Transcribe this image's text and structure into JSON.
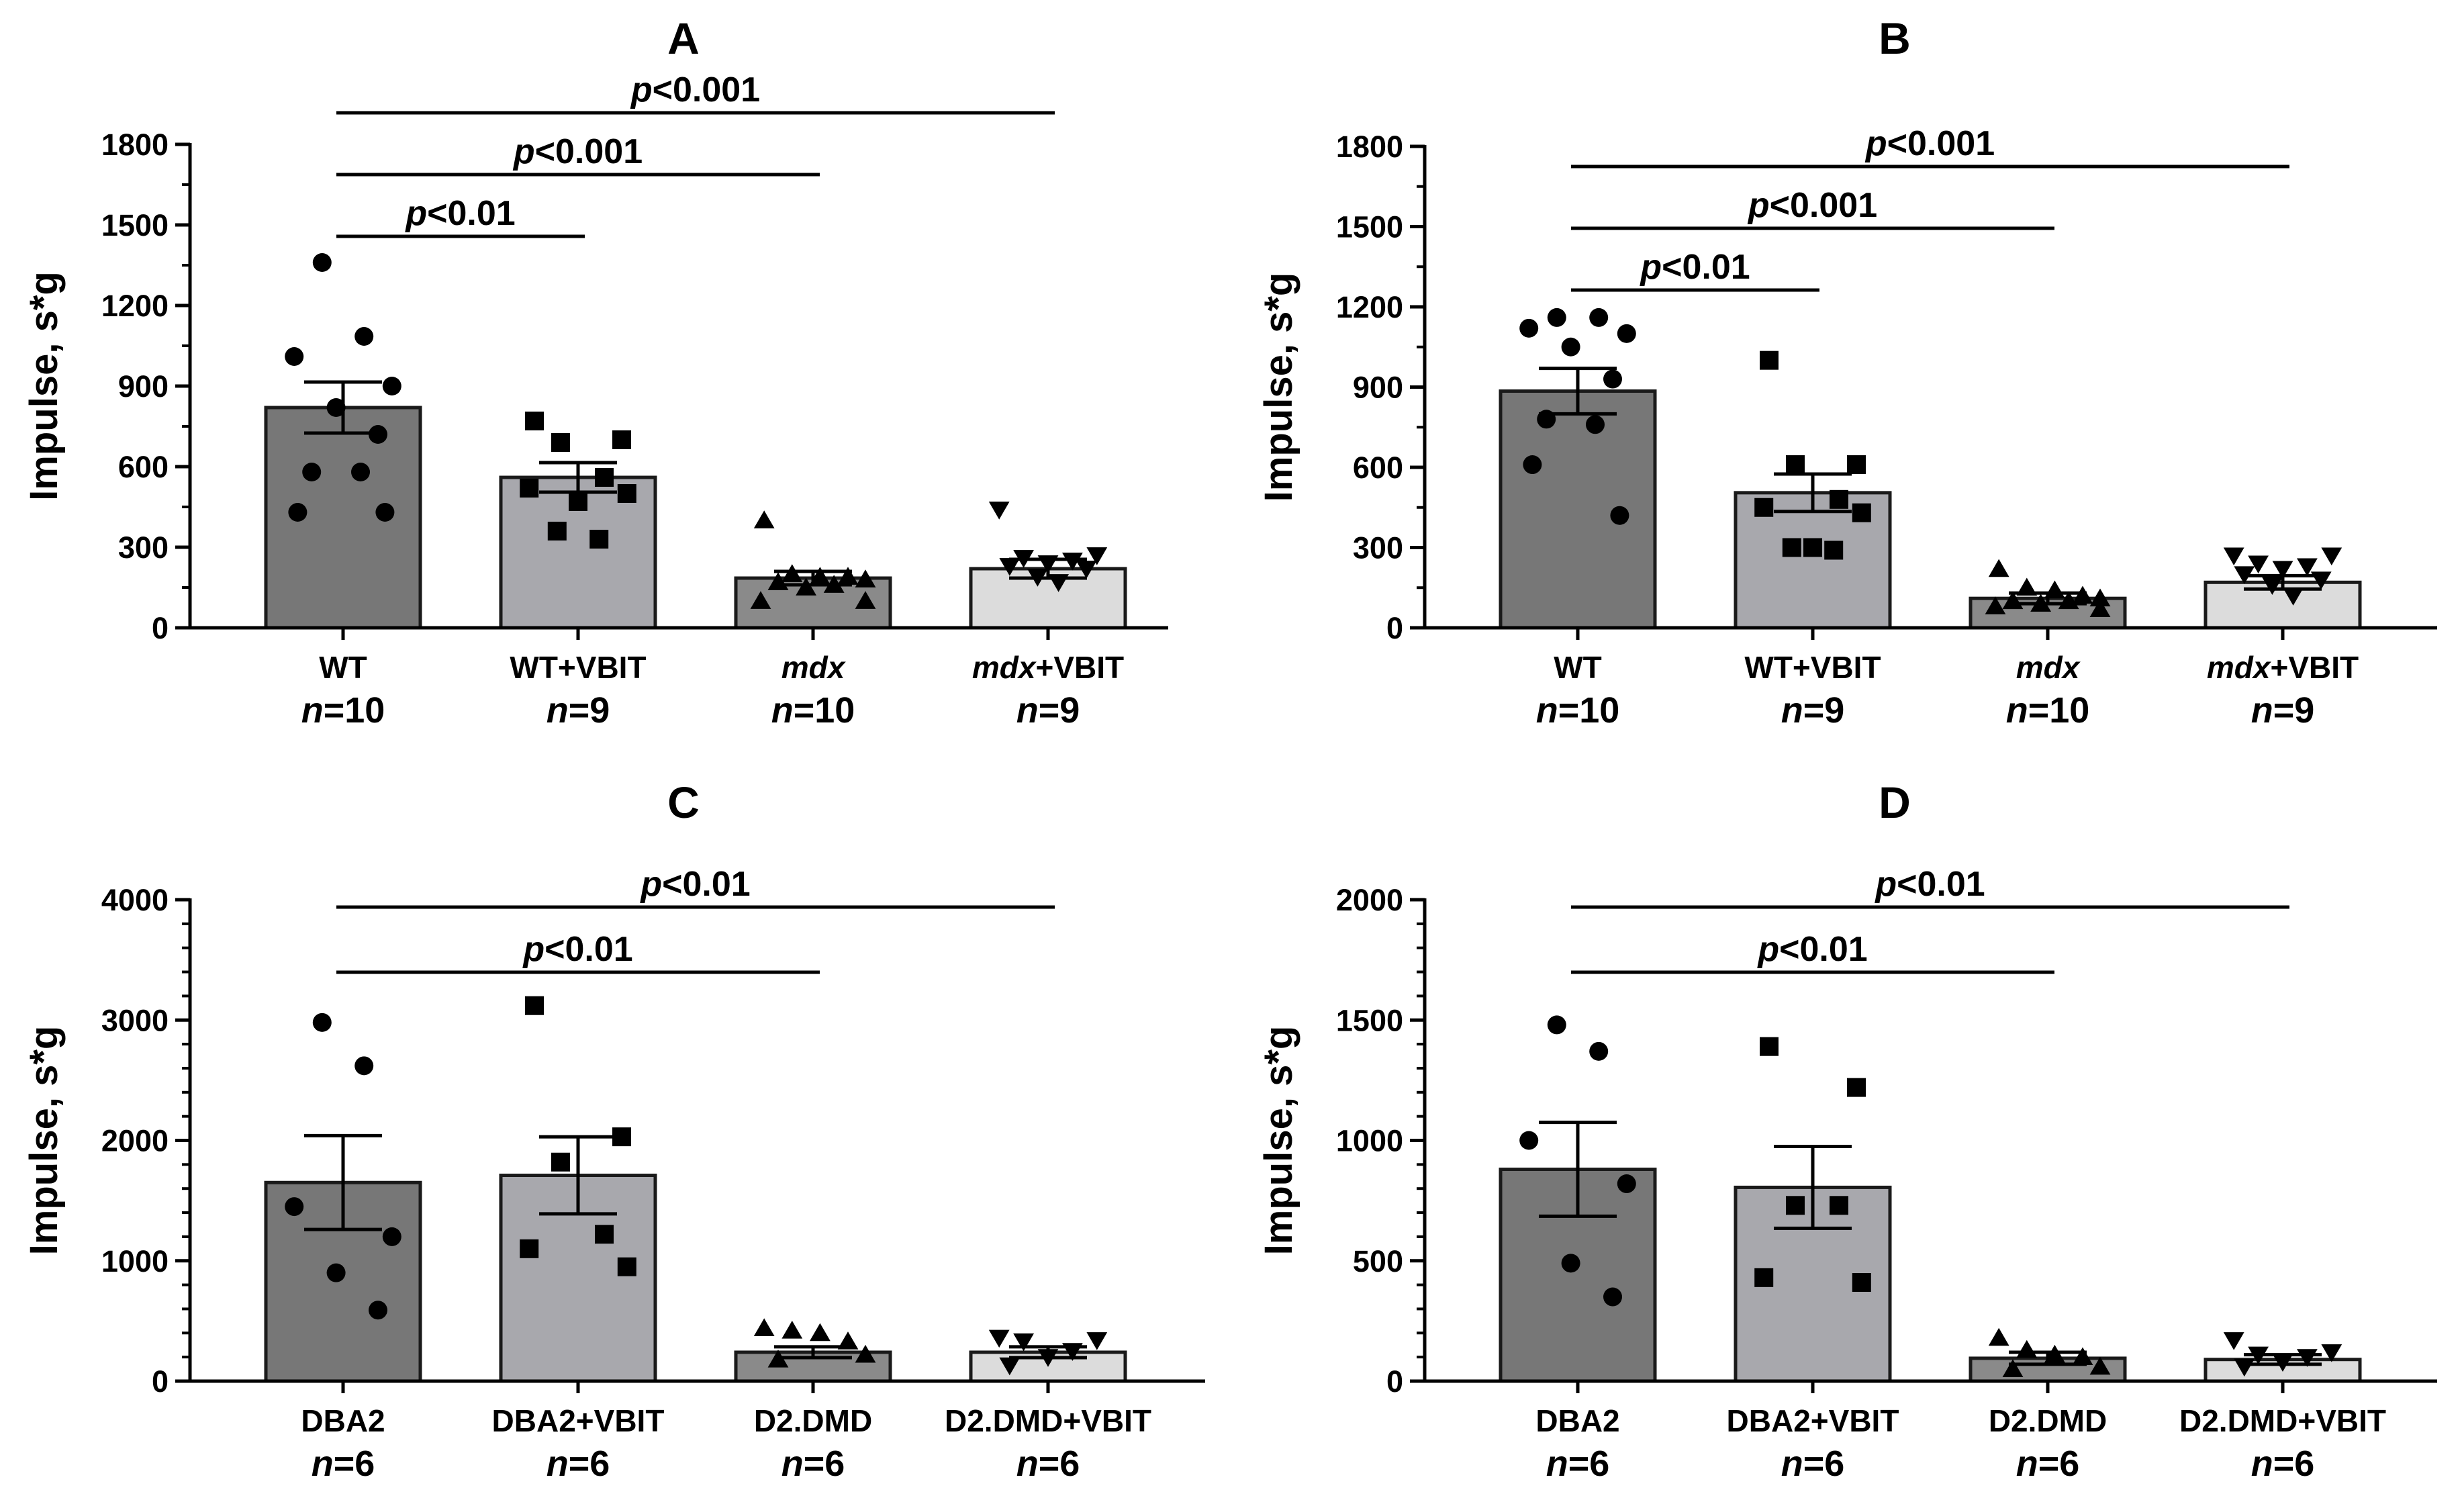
{
  "chart_data": [
    {
      "type": "bar",
      "title": "A",
      "ylabel": "Impulse, s*g",
      "xlabel": "",
      "ylim": [
        0,
        1800
      ],
      "yticks": [
        0,
        300,
        600,
        900,
        1200,
        1500,
        1800
      ],
      "categories": [
        {
          "name": "WT",
          "italic": "",
          "suffix": "WT",
          "n": "10"
        },
        {
          "name": "WT+VBIT",
          "italic": "",
          "suffix": "WT+VBIT",
          "n": "9"
        },
        {
          "name": "mdx",
          "italic": "mdx",
          "suffix": "",
          "n": "10"
        },
        {
          "name": "mdx+VBIT",
          "italic": "mdx",
          "suffix": "+VBIT",
          "n": "9"
        }
      ],
      "n_prefix": "n",
      "means": [
        820,
        560,
        185,
        220
      ],
      "sem": [
        95,
        55,
        25,
        35
      ],
      "bar_colors": [
        "#777777",
        "#a8a8ad",
        "#8a8a8a",
        "#dcdcdc"
      ],
      "markers": [
        "circle",
        "square",
        "triangle-up",
        "triangle-down"
      ],
      "points": [
        [
          1360,
          1085,
          1010,
          900,
          820,
          720,
          580,
          580,
          430,
          430
        ],
        [
          770,
          700,
          690,
          560,
          520,
          500,
          470,
          360,
          330
        ],
        [
          400,
          200,
          190,
          190,
          180,
          170,
          160,
          150,
          100,
          100
        ],
        [
          440,
          270,
          260,
          250,
          240,
          230,
          220,
          190,
          170
        ]
      ],
      "significance": [
        {
          "from": 0,
          "to": 1,
          "p_symbol": "p",
          "label": "<0.01"
        },
        {
          "from": 0,
          "to": 2,
          "p_symbol": "p",
          "label": "<0.001"
        },
        {
          "from": 0,
          "to": 3,
          "p_symbol": "p",
          "label": "<0.001"
        }
      ]
    },
    {
      "type": "bar",
      "title": "B",
      "ylabel": "Impulse, s*g",
      "xlabel": "",
      "ylim": [
        0,
        1800
      ],
      "yticks": [
        0,
        300,
        600,
        900,
        1200,
        1500,
        1800
      ],
      "categories": [
        {
          "name": "WT",
          "italic": "",
          "suffix": "WT",
          "n": "10"
        },
        {
          "name": "WT+VBIT",
          "italic": "",
          "suffix": "WT+VBIT",
          "n": "9"
        },
        {
          "name": "mdx",
          "italic": "mdx",
          "suffix": "",
          "n": "10"
        },
        {
          "name": "mdx+VBIT",
          "italic": "mdx",
          "suffix": "+VBIT",
          "n": "9"
        }
      ],
      "n_prefix": "n",
      "means": [
        885,
        505,
        110,
        170
      ],
      "sem": [
        85,
        70,
        20,
        25
      ],
      "bar_colors": [
        "#777777",
        "#a8a8ad",
        "#8a8a8a",
        "#dcdcdc"
      ],
      "markers": [
        "circle",
        "square",
        "triangle-up",
        "triangle-down"
      ],
      "points": [
        [
          1160,
          1160,
          1120,
          1100,
          1050,
          930,
          780,
          760,
          610,
          420
        ],
        [
          1000,
          610,
          610,
          480,
          450,
          430,
          300,
          300,
          290
        ],
        [
          220,
          150,
          140,
          120,
          110,
          100,
          100,
          90,
          80,
          70
        ],
        [
          270,
          270,
          240,
          230,
          220,
          200,
          180,
          160,
          120
        ]
      ],
      "significance": [
        {
          "from": 0,
          "to": 1,
          "p_symbol": "p",
          "label": "<0.01"
        },
        {
          "from": 0,
          "to": 2,
          "p_symbol": "p",
          "label": "<0.001"
        },
        {
          "from": 0,
          "to": 3,
          "p_symbol": "p",
          "label": "<0.001"
        }
      ]
    },
    {
      "type": "bar",
      "title": "C",
      "ylabel": "Impulse, s*g",
      "xlabel": "",
      "ylim": [
        0,
        4000
      ],
      "yticks": [
        0,
        1000,
        2000,
        3000,
        4000
      ],
      "categories": [
        {
          "name": "DBA2",
          "italic": "",
          "suffix": "DBA2",
          "n": "6"
        },
        {
          "name": "DBA2+VBIT",
          "italic": "",
          "suffix": "DBA2+VBIT",
          "n": "6"
        },
        {
          "name": "D2.DMD",
          "italic": "",
          "suffix": "D2.DMD",
          "n": "6"
        },
        {
          "name": "D2.DMD+VBIT",
          "italic": "",
          "suffix": "D2.DMD+VBIT",
          "n": "6"
        }
      ],
      "n_prefix": "n",
      "means": [
        1650,
        1710,
        240,
        240
      ],
      "sem": [
        390,
        320,
        45,
        45
      ],
      "bar_colors": [
        "#777777",
        "#a8a8ad",
        "#8a8a8a",
        "#dcdcdc"
      ],
      "markers": [
        "circle",
        "square",
        "triangle-up",
        "triangle-down"
      ],
      "points": [
        [
          2980,
          2620,
          1450,
          1200,
          900,
          590
        ],
        [
          3120,
          2030,
          1820,
          1220,
          1100,
          950
        ],
        [
          440,
          420,
          400,
          330,
          220,
          180
        ],
        [
          360,
          340,
          330,
          250,
          200,
          130
        ]
      ],
      "significance": [
        {
          "from": 0,
          "to": 2,
          "p_symbol": "p",
          "label": "<0.01"
        },
        {
          "from": 0,
          "to": 3,
          "p_symbol": "p",
          "label": "<0.01"
        }
      ]
    },
    {
      "type": "bar",
      "title": "D",
      "ylabel": "Impulse, s*g",
      "xlabel": "",
      "ylim": [
        0,
        2000
      ],
      "yticks": [
        0,
        500,
        1000,
        1500,
        2000
      ],
      "categories": [
        {
          "name": "DBA2",
          "italic": "",
          "suffix": "DBA2",
          "n": "6"
        },
        {
          "name": "DBA2+VBIT",
          "italic": "",
          "suffix": "DBA2+VBIT",
          "n": "6"
        },
        {
          "name": "D2.DMD",
          "italic": "",
          "suffix": "D2.DMD",
          "n": "6"
        },
        {
          "name": "D2.DMD+VBIT",
          "italic": "",
          "suffix": "D2.DMD+VBIT",
          "n": "6"
        }
      ],
      "n_prefix": "n",
      "means": [
        880,
        805,
        95,
        90
      ],
      "sem": [
        195,
        170,
        25,
        20
      ],
      "bar_colors": [
        "#777777",
        "#a8a8ad",
        "#8a8a8a",
        "#dcdcdc"
      ],
      "markers": [
        "circle",
        "square",
        "triangle-up",
        "triangle-down"
      ],
      "points": [
        [
          1480,
          1370,
          1000,
          820,
          490,
          350
        ],
        [
          1390,
          1220,
          730,
          730,
          430,
          410
        ],
        [
          180,
          130,
          110,
          100,
          60,
          50
        ],
        [
          170,
          120,
          110,
          100,
          80,
          60
        ]
      ],
      "significance": [
        {
          "from": 0,
          "to": 2,
          "p_symbol": "p",
          "label": "<0.01"
        },
        {
          "from": 0,
          "to": 3,
          "p_symbol": "p",
          "label": "<0.01"
        }
      ]
    }
  ]
}
